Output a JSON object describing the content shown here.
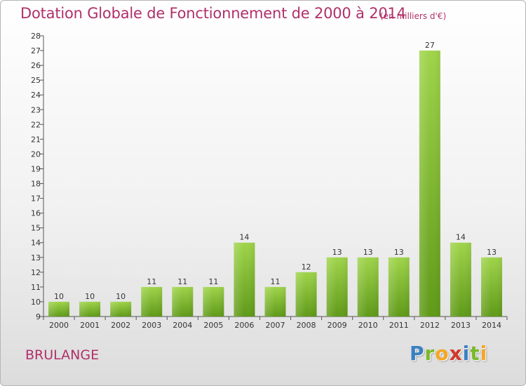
{
  "header": {
    "title": "Dotation Globale de Fonctionnement de 2000 à 2014",
    "subtitle": "(en milliers d'€)"
  },
  "footer": {
    "commune": "BRULANGE",
    "brand_letters": [
      "P",
      "r",
      "o",
      "x",
      "i",
      "t",
      "i"
    ]
  },
  "colors": {
    "title": "#b0306a",
    "bar_top": "#9fd44a",
    "bar_bottom": "#5f9a18",
    "brand_letters": [
      "#3a7fc1",
      "#7ab929",
      "#f5a623",
      "#d03a2a",
      "#3a7fc1",
      "#7ab929",
      "#f5a623"
    ]
  },
  "chart_data": {
    "type": "bar",
    "title": "Dotation Globale de Fonctionnement de 2000 à 2014",
    "subtitle": "(en milliers d'€)",
    "categories": [
      "2000",
      "2001",
      "2002",
      "2003",
      "2004",
      "2005",
      "2006",
      "2007",
      "2008",
      "2009",
      "2010",
      "2011",
      "2012",
      "2013",
      "2014"
    ],
    "values": [
      10,
      10,
      10,
      11,
      11,
      11,
      14,
      11,
      12,
      13,
      13,
      13,
      27,
      14,
      13
    ],
    "data_labels": [
      "10",
      "10",
      "10",
      "11",
      "11",
      "11",
      "14",
      "11",
      "12",
      "13",
      "13",
      "13",
      "27",
      "14",
      "13"
    ],
    "ylim": [
      9,
      28
    ],
    "yticks": [
      "9",
      "10",
      "11",
      "12",
      "13",
      "14",
      "15",
      "16",
      "17",
      "18",
      "19",
      "20",
      "21",
      "22",
      "23",
      "24",
      "25",
      "26",
      "27",
      "28"
    ],
    "xlabel": "",
    "ylabel": "",
    "grid": false,
    "legend": "none"
  }
}
